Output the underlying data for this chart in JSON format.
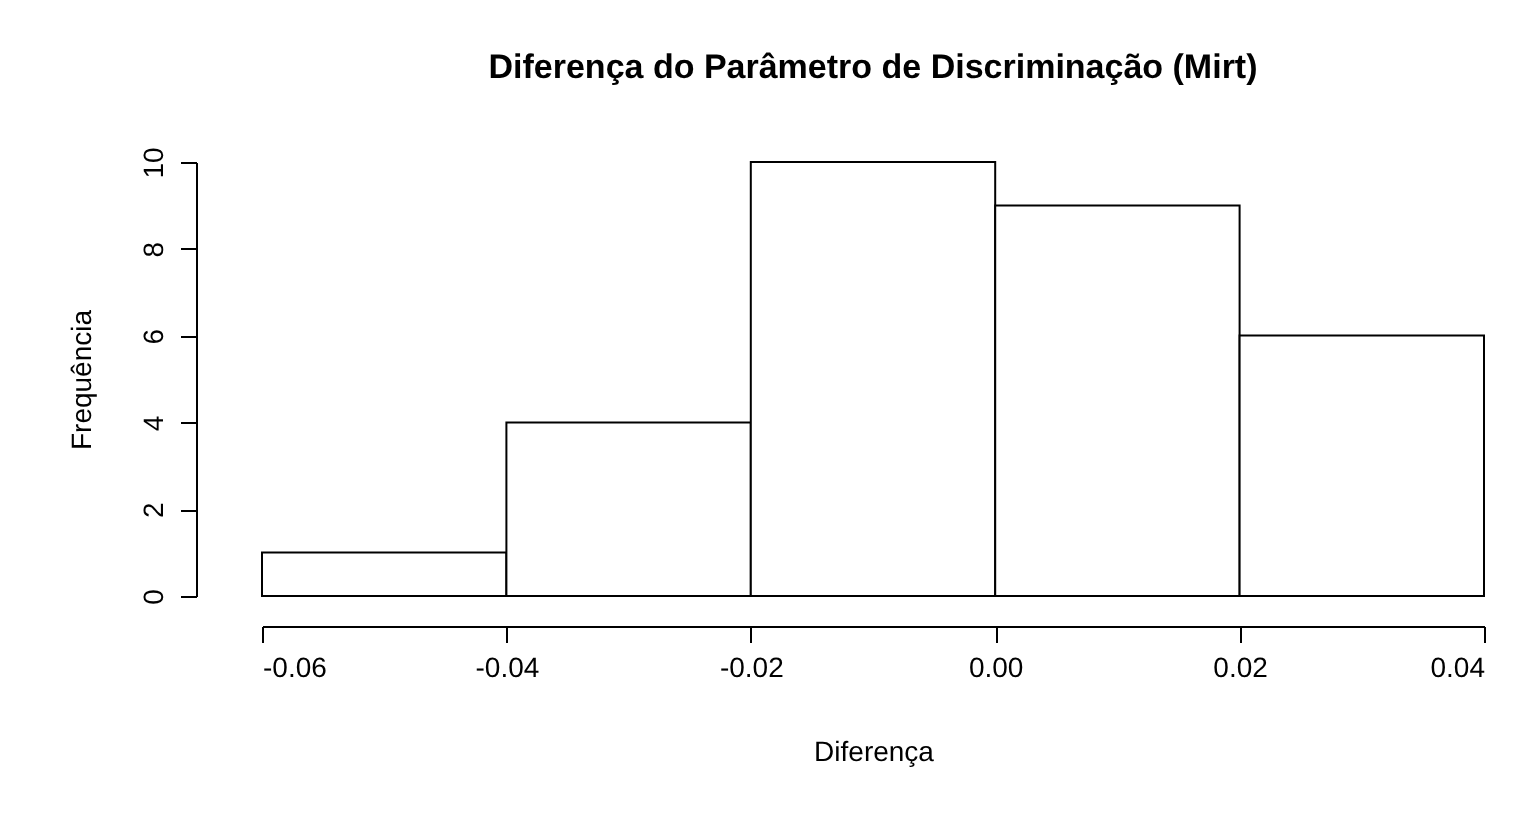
{
  "chart_data": {
    "type": "histogram",
    "title": "Diferença do Parâmetro de Discriminação (Mirt)",
    "xlabel": "Diferença",
    "ylabel": "Frequência",
    "bins": [
      -0.06,
      -0.04,
      -0.02,
      0,
      0.02,
      0.04
    ],
    "values": [
      1,
      4,
      10,
      9,
      6
    ],
    "color": "#ffffff",
    "xlim": [
      -0.06,
      0.04
    ],
    "xticks": [
      -0.06,
      -0.04,
      -0.02,
      {
        "value": 0,
        "label": "0.00"
      },
      0.02,
      0.04
    ],
    "ylim": [
      0,
      10
    ],
    "yticks": [
      0,
      2,
      4,
      6,
      8,
      10
    ]
  }
}
